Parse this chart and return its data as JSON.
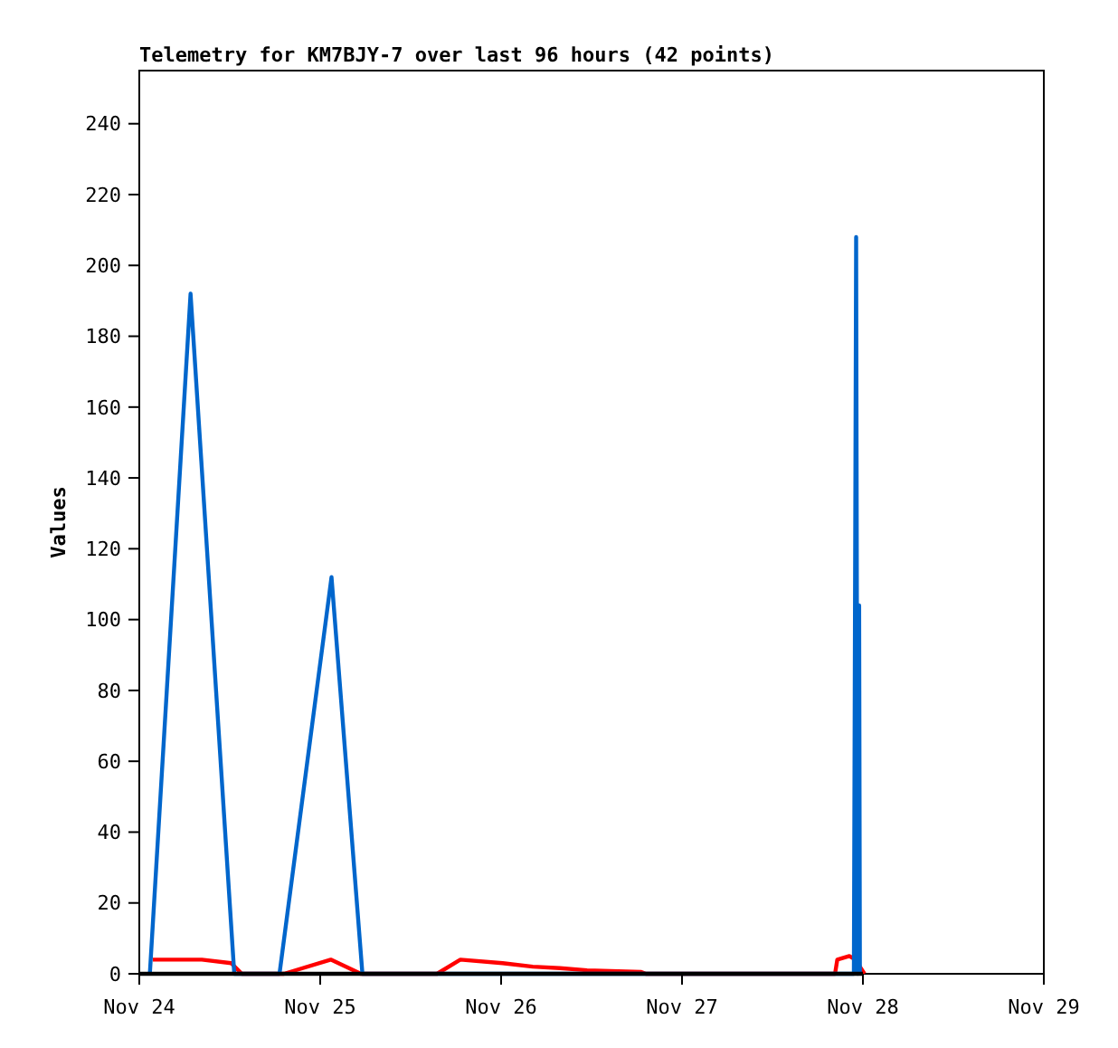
{
  "chart_data": {
    "type": "line",
    "title": "Telemetry for KM7BJY-7 over last 96 hours (42 points)",
    "ylabel": "Values",
    "xlim": [
      "--11-24",
      "--11-29"
    ],
    "xticks": [
      {
        "value": "--11-24",
        "label": "Nov 24"
      },
      {
        "value": "--11-25",
        "label": "Nov 25"
      },
      {
        "value": "--11-26",
        "label": "Nov 26"
      },
      {
        "value": "--11-27",
        "label": "Nov 27"
      },
      {
        "value": "--11-28",
        "label": "Nov 28"
      },
      {
        "value": "--11-29",
        "label": "Nov 29"
      }
    ],
    "ylim": [
      0,
      255
    ],
    "yticks": [
      0,
      20,
      40,
      60,
      80,
      100,
      120,
      140,
      160,
      180,
      200,
      220,
      240
    ],
    "grid": false,
    "marker": "none",
    "line_style": "solid",
    "series": [
      {
        "color": "#ff0000",
        "x": [
          "--11-24T01:48",
          "--11-24T08:18",
          "--11-24T12:12",
          "--11-24T13:36",
          "--11-24T19:12",
          "--11-25T01:24",
          "--11-25T05:24",
          "--11-25T15:30",
          "--11-25T18:36",
          "--11-26T00:12",
          "--11-26T04:12",
          "--11-26T07:48",
          "--11-26T11:24",
          "--11-26T18:36",
          "--11-26T19:12",
          "--11-27T20:18",
          "--11-27T20:36",
          "--11-27T22:12",
          "--11-27T23:00",
          "--11-28T00:12"
        ],
        "values": [
          4,
          4,
          3,
          0,
          0,
          4,
          0,
          0,
          4,
          3,
          2,
          1.6,
          1,
          0.5,
          0,
          0,
          4,
          5,
          4,
          0
        ]
      },
      {
        "color": "#0066cc",
        "x": [
          "--11-24T01:24",
          "--11-24T06:48",
          "--11-24T12:36",
          "--11-24T18:36",
          "--11-25T01:30",
          "--11-25T05:36",
          "--11-27T22:48",
          "--11-27T23:06",
          "--11-27T23:18",
          "--11-27T23:30",
          "--11-27T23:36"
        ],
        "values": [
          0,
          192,
          0,
          0,
          112,
          0,
          0,
          208,
          0,
          104,
          0
        ]
      },
      {
        "color": "#000000",
        "x": [
          "--11-24T00:00",
          "--11-28T00:00"
        ],
        "values": [
          0,
          0
        ]
      }
    ]
  }
}
